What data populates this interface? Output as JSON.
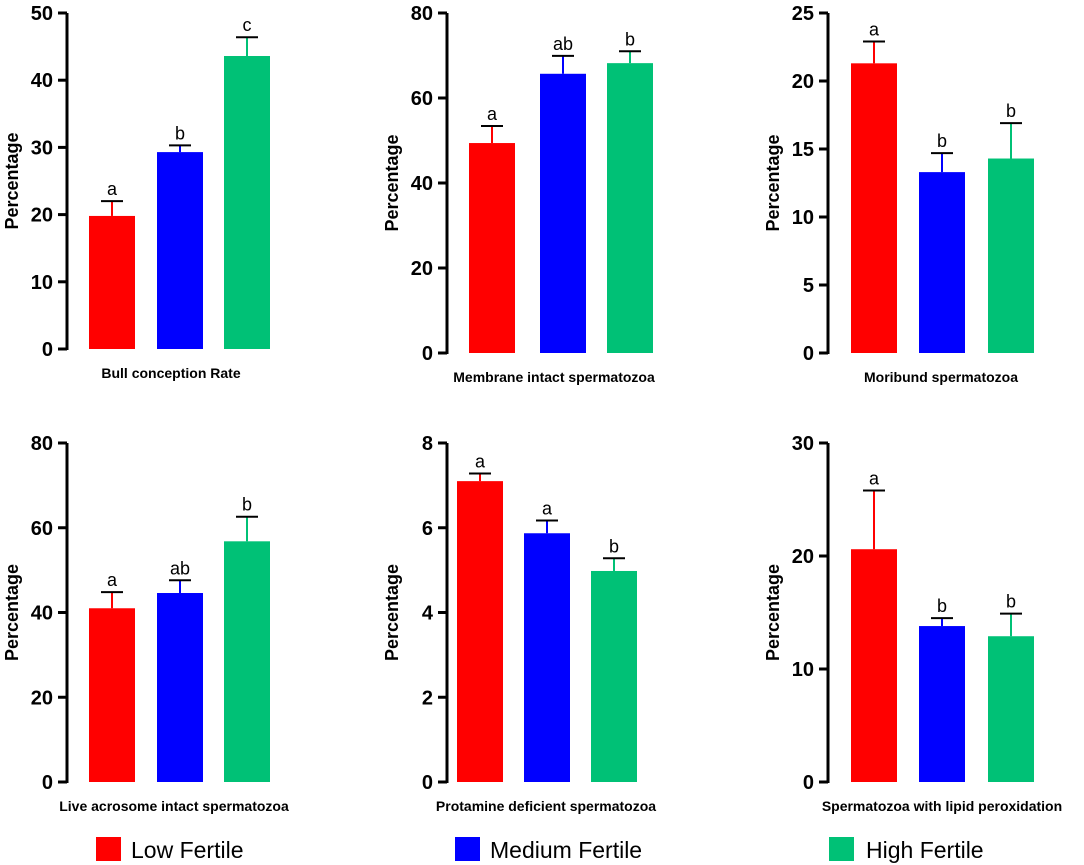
{
  "legend": {
    "items": [
      {
        "label": "Low Fertile",
        "color": "#FF0000"
      },
      {
        "label": "Medium Fertile",
        "color": "#0000FF"
      },
      {
        "label": "High Fertile",
        "color": "#00C176"
      }
    ]
  },
  "chart_data": [
    {
      "type": "bar",
      "title": "",
      "xlabel": "Bull conception Rate",
      "ylabel": "Percentage",
      "ylim": [
        0,
        50
      ],
      "yticks": [
        0,
        10,
        20,
        30,
        40,
        50
      ],
      "categories": [
        "Low Fertile",
        "Medium Fertile",
        "High Fertile"
      ],
      "values": [
        19.8,
        29.3,
        43.6
      ],
      "errors": [
        2.2,
        1.0,
        2.8
      ],
      "significance": [
        "a",
        "b",
        "c"
      ]
    },
    {
      "type": "bar",
      "title": "",
      "xlabel": "Membrane intact spermatozoa",
      "ylabel": "Percentage",
      "ylim": [
        0,
        80
      ],
      "yticks": [
        0,
        20,
        40,
        60,
        80
      ],
      "categories": [
        "Low Fertile",
        "Medium Fertile",
        "High Fertile"
      ],
      "values": [
        49.4,
        65.7,
        68.2
      ],
      "errors": [
        4.0,
        4.2,
        2.8
      ],
      "significance": [
        "a",
        "ab",
        "b"
      ]
    },
    {
      "type": "bar",
      "title": "",
      "xlabel": "Moribund spermatozoa",
      "ylabel": "Percentage",
      "ylim": [
        0,
        25
      ],
      "yticks": [
        0,
        5,
        10,
        15,
        20,
        25
      ],
      "categories": [
        "Low Fertile",
        "Medium Fertile",
        "High Fertile"
      ],
      "values": [
        21.3,
        13.3,
        14.3
      ],
      "errors": [
        1.6,
        1.4,
        2.6
      ],
      "significance": [
        "a",
        "b",
        "b"
      ]
    },
    {
      "type": "bar",
      "title": "",
      "xlabel": "Live acrosome intact spermatozoa",
      "ylabel": "Percentage",
      "ylim": [
        0,
        80
      ],
      "yticks": [
        0,
        20,
        40,
        60,
        80
      ],
      "categories": [
        "Low Fertile",
        "Medium Fertile",
        "High Fertile"
      ],
      "values": [
        41.0,
        44.6,
        56.8
      ],
      "errors": [
        3.8,
        3.0,
        5.8
      ],
      "significance": [
        "a",
        "ab",
        "b"
      ]
    },
    {
      "type": "bar",
      "title": "",
      "xlabel": "Protamine deficient spermatozoa",
      "ylabel": "Percentage",
      "ylim": [
        0,
        8
      ],
      "yticks": [
        0,
        2,
        4,
        6,
        8
      ],
      "categories": [
        "Low Fertile",
        "Medium Fertile",
        "High Fertile"
      ],
      "values": [
        7.1,
        5.87,
        4.98
      ],
      "errors": [
        0.18,
        0.3,
        0.3
      ],
      "significance": [
        "a",
        "a",
        "b"
      ]
    },
    {
      "type": "bar",
      "title": "",
      "xlabel": "Spermatozoa with lipid peroxidation",
      "ylabel": "Percentage",
      "ylim": [
        0,
        30
      ],
      "yticks": [
        0,
        10,
        20,
        30
      ],
      "categories": [
        "Low Fertile",
        "Medium Fertile",
        "High Fertile"
      ],
      "values": [
        20.6,
        13.8,
        12.9
      ],
      "errors": [
        5.2,
        0.7,
        2.0
      ],
      "significance": [
        "a",
        "b",
        "b"
      ]
    }
  ]
}
